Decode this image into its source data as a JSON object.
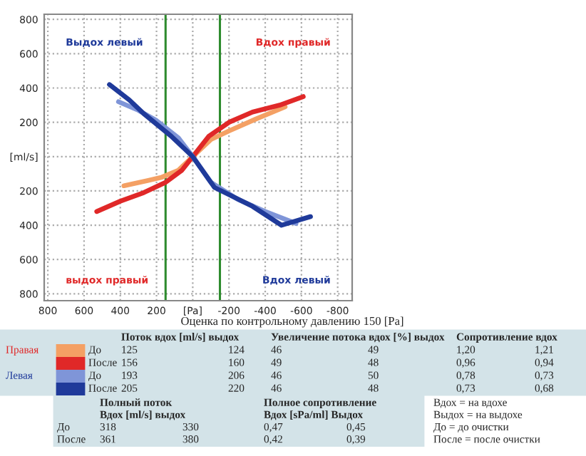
{
  "chart_data": [
    {
      "type": "line",
      "xlim": [
        820,
        -880
      ],
      "ylim": [
        -840,
        830
      ],
      "xticks": [
        800,
        600,
        400,
        200,
        {
          "value": 0,
          "label": "[Pa]"
        },
        -200,
        -400,
        -600,
        -800
      ],
      "yticks": [
        {
          "value": 800,
          "label": "800"
        },
        {
          "value": 600,
          "label": "600"
        },
        {
          "value": 400,
          "label": "400"
        },
        {
          "value": 200,
          "label": "200"
        },
        {
          "value": 0,
          "label": "[ml/s]"
        },
        {
          "value": -200,
          "label": "200"
        },
        {
          "value": -400,
          "label": "400"
        },
        {
          "value": -600,
          "label": "600"
        },
        {
          "value": -800,
          "label": "800"
        }
      ],
      "grid": true,
      "line_style": "solid",
      "ref_lines": [
        {
          "axis": "x",
          "value": 150,
          "color": "#2e8b2e"
        },
        {
          "axis": "x",
          "value": -150,
          "color": "#2e8b2e"
        }
      ],
      "legend": "bottom left",
      "annotations": [
        "Выдох левый",
        "Вдох правый",
        "выдох правый",
        "Вдох левый"
      ],
      "series": [
        {
          "name": "До",
          "color": "#f4a064",
          "x": [
            380,
            250,
            170,
            80,
            0,
            -100,
            -200,
            -350,
            -510
          ],
          "values": [
            -170,
            -140,
            -120,
            -80,
            0,
            100,
            150,
            220,
            290
          ]
        },
        {
          "name": "После",
          "color": "#e02828",
          "x": [
            530,
            400,
            270,
            150,
            60,
            0,
            -90,
            -200,
            -330,
            -480,
            -610
          ],
          "values": [
            -320,
            -260,
            -210,
            -150,
            -80,
            0,
            120,
            200,
            260,
            300,
            350
          ]
        },
        {
          "name": "До",
          "color": "#7f95d8",
          "x": [
            410,
            300,
            200,
            80,
            0,
            -100,
            -250,
            -400,
            -570
          ],
          "values": [
            320,
            270,
            210,
            110,
            0,
            -150,
            -250,
            -320,
            -390
          ]
        },
        {
          "name": "После",
          "color": "#1f3a9a",
          "x": [
            460,
            350,
            270,
            120,
            0,
            -120,
            -330,
            -490,
            -650
          ],
          "values": [
            420,
            330,
            250,
            120,
            0,
            -180,
            -290,
            -400,
            -350
          ]
        }
      ]
    },
    {
      "type": "other",
      "title": "Оценка по контрольному давлению 150 [Pa]",
      "annotations": [
        "\tПоток вдох [ml/s] выдох\t\tУвеличение потока вдох [%] выдох\t\tСопротивление вдох\t",
        "Правая\t125\t124\t46\t49\t1,20\t1,21",
        "\t156\t160\t49\t48\t0,96\t0,94",
        "Левая\t193\t206\t46\t50\t0,78\t0,73",
        "\t205\t220\t46\t48\t0,73\t0,68"
      ]
    },
    {
      "type": "other",
      "annotations": [
        "\tПолный поток\t\tПолное сопротивление\t",
        "\tВдох [ml/s] выдох\t\tВдох [sPa/ml] Выдох\t",
        "До\t318\t330\t0,47\t0,45",
        "После\t361\t380\t0,42\t0,39"
      ]
    },
    {
      "type": "other",
      "annotations": [
        "Вдох = на вдохе",
        "Выдох = на выдохе",
        "До = до очистки",
        "После = после очистки"
      ]
    }
  ]
}
